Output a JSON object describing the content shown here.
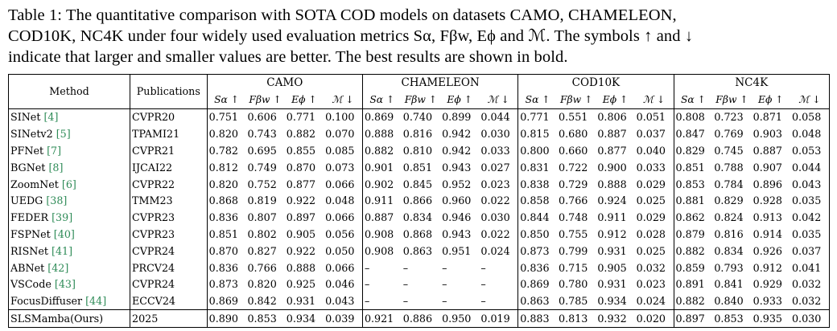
{
  "caption": {
    "label": "Table 1:",
    "line1": "The quantitative comparison with SOTA COD models on datasets CAMO, CHAMELEON,",
    "line2": "COD10K, NC4K under four widely used evaluation metrics Sα, Fβw, Eϕ and ℳ. The symbols ↑ and ↓",
    "line3": "indicate that larger and smaller values are better. The best results are shown in bold."
  },
  "table": {
    "col_method": "Method",
    "col_pub": "Publications",
    "datasets": [
      "CAMO",
      "CHAMELEON",
      "COD10K",
      "NC4K"
    ],
    "metrics": [
      "Sα ↑",
      "Fβw ↑",
      "Eϕ ↑",
      "ℳ ↓"
    ],
    "rows": [
      {
        "method": "SINet",
        "cite": "[4]",
        "pub": "CVPR20",
        "v": [
          "0.751",
          "0.606",
          "0.771",
          "0.100",
          "0.869",
          "0.740",
          "0.899",
          "0.044",
          "0.771",
          "0.551",
          "0.806",
          "0.051",
          "0.808",
          "0.723",
          "0.871",
          "0.058"
        ]
      },
      {
        "method": "SINetv2",
        "cite": "[5]",
        "pub": "TPAMI21",
        "v": [
          "0.820",
          "0.743",
          "0.882",
          "0.070",
          "0.888",
          "0.816",
          "0.942",
          "0.030",
          "0.815",
          "0.680",
          "0.887",
          "0.037",
          "0.847",
          "0.769",
          "0.903",
          "0.048"
        ]
      },
      {
        "method": "PFNet",
        "cite": "[7]",
        "pub": "CVPR21",
        "v": [
          "0.782",
          "0.695",
          "0.855",
          "0.085",
          "0.882",
          "0.810",
          "0.942",
          "0.033",
          "0.800",
          "0.660",
          "0.877",
          "0.040",
          "0.829",
          "0.745",
          "0.887",
          "0.053"
        ]
      },
      {
        "method": "BGNet",
        "cite": "[8]",
        "pub": "IJCAI22",
        "v": [
          "0.812",
          "0.749",
          "0.870",
          "0.073",
          "0.901",
          "0.851",
          "0.943",
          "0.027",
          "0.831",
          "0.722",
          "0.900",
          "0.033",
          "0.851",
          "0.788",
          "0.907",
          "0.044"
        ]
      },
      {
        "method": "ZoomNet",
        "cite": "[6]",
        "pub": "CVPR22",
        "v": [
          "0.820",
          "0.752",
          "0.877",
          "0.066",
          "0.902",
          "0.845",
          "0.952",
          "0.023",
          "0.838",
          "0.729",
          "0.888",
          "0.029",
          "0.853",
          "0.784",
          "0.896",
          "0.043"
        ]
      },
      {
        "method": "UEDG",
        "cite": "[38]",
        "pub": "TMM23",
        "v": [
          "0.868",
          "0.819",
          "0.922",
          "0.048",
          "0.911",
          "0.866",
          "0.960",
          "0.022",
          "0.858",
          "0.766",
          "0.924",
          "0.025",
          "0.881",
          "0.829",
          "0.928",
          "0.035"
        ],
        "bold": [
          6
        ]
      },
      {
        "method": "FEDER",
        "cite": "[39]",
        "pub": "CVPR23",
        "v": [
          "0.836",
          "0.807",
          "0.897",
          "0.066",
          "0.887",
          "0.834",
          "0.946",
          "0.030",
          "0.844",
          "0.748",
          "0.911",
          "0.029",
          "0.862",
          "0.824",
          "0.913",
          "0.042"
        ]
      },
      {
        "method": "FSPNet",
        "cite": "[40]",
        "pub": "CVPR23",
        "v": [
          "0.851",
          "0.802",
          "0.905",
          "0.056",
          "0.908",
          "0.868",
          "0.943",
          "0.022",
          "0.850",
          "0.755",
          "0.912",
          "0.028",
          "0.879",
          "0.816",
          "0.914",
          "0.035"
        ]
      },
      {
        "method": "RISNet",
        "cite": "[41]",
        "pub": "CVPR24",
        "v": [
          "0.870",
          "0.827",
          "0.922",
          "0.050",
          "0.908",
          "0.863",
          "0.951",
          "0.024",
          "0.873",
          "0.799",
          "0.931",
          "0.025",
          "0.882",
          "0.834",
          "0.926",
          "0.037"
        ]
      },
      {
        "method": "ABNet",
        "cite": "[42]",
        "pub": "PRCV24",
        "v": [
          "0.836",
          "0.766",
          "0.888",
          "0.066",
          "–",
          "–",
          "–",
          "–",
          "0.836",
          "0.715",
          "0.905",
          "0.032",
          "0.859",
          "0.793",
          "0.912",
          "0.041"
        ]
      },
      {
        "method": "VSCode",
        "cite": "[43]",
        "pub": "CVPR24",
        "v": [
          "0.873",
          "0.820",
          "0.925",
          "0.046",
          "–",
          "–",
          "–",
          "–",
          "0.869",
          "0.780",
          "0.931",
          "0.023",
          "0.891",
          "0.841",
          "0.929",
          "0.032"
        ]
      },
      {
        "method": "FocusDiffuser",
        "cite": "[44]",
        "pub": "ECCV24",
        "v": [
          "0.869",
          "0.842",
          "0.931",
          "0.043",
          "–",
          "–",
          "–",
          "–",
          "0.863",
          "0.785",
          "0.934",
          "0.024",
          "0.882",
          "0.840",
          "0.933",
          "0.032"
        ],
        "bold": [
          10
        ]
      },
      {
        "method": "SLSMamba(Ours)",
        "cite": "",
        "pub": "2025",
        "v": [
          "0.890",
          "0.853",
          "0.934",
          "0.039",
          "0.921",
          "0.886",
          "0.950",
          "0.019",
          "0.883",
          "0.813",
          "0.932",
          "0.020",
          "0.897",
          "0.853",
          "0.935",
          "0.030"
        ],
        "bold": [
          0,
          1,
          2,
          3,
          4,
          5,
          7,
          8,
          9,
          11,
          12,
          13,
          14,
          15
        ],
        "bold_name": true
      }
    ]
  }
}
